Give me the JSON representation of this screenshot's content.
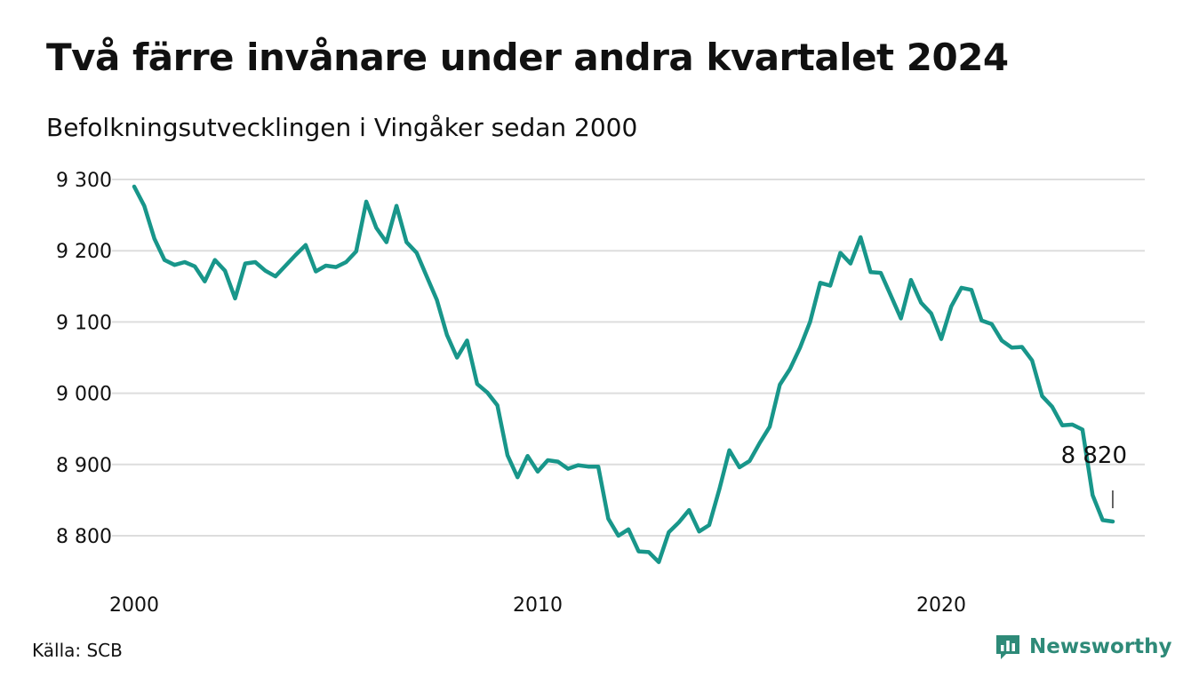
{
  "title": "Två färre invånare under andra kvartalet 2024",
  "subtitle": "Befolkningsutvecklingen i Vingåker sedan 2000",
  "source": "Källa: SCB",
  "brand": {
    "name": "Newsworthy",
    "icon": "newsworthy-logo-icon",
    "color": "#2e8a78"
  },
  "colors": {
    "line": "#18968a",
    "grid": "#dddddd",
    "text": "#111111"
  },
  "chart_data": {
    "type": "line",
    "title": "Två färre invånare under andra kvartalet 2024",
    "subtitle": "Befolkningsutvecklingen i Vingåker sedan 2000",
    "xlabel": "",
    "ylabel": "",
    "x_range": [
      2000,
      2025
    ],
    "ylim": [
      8745,
      9300
    ],
    "y_ticks": [
      8800,
      8900,
      9000,
      9100,
      9200,
      9300
    ],
    "y_tick_labels": [
      "8 800",
      "8 900",
      "9 000",
      "9 100",
      "9 200",
      "9 300"
    ],
    "x_ticks": [
      2000,
      2010,
      2020
    ],
    "x_tick_labels": [
      "2000",
      "2010",
      "2020"
    ],
    "grid": true,
    "end_label": "8 820",
    "series": [
      {
        "frequency": "quarterly",
        "start": "2000 Q1",
        "values": [
          9290,
          9263,
          9217,
          9187,
          9180,
          9184,
          9178,
          9157,
          9187,
          9172,
          9133,
          9182,
          9184,
          9172,
          9164,
          9179,
          9194,
          9208,
          9171,
          9179,
          9177,
          9184,
          9199,
          9269,
          9232,
          9212,
          9263,
          9212,
          9197,
          9164,
          9131,
          9082,
          9050,
          9074,
          9013,
          9001,
          8983,
          8913,
          8882,
          8912,
          8890,
          8906,
          8904,
          8894,
          8899,
          8897,
          8897,
          8824,
          8800,
          8809,
          8778,
          8777,
          8763,
          8805,
          8819,
          8836,
          8806,
          8815,
          8865,
          8920,
          8896,
          8905,
          8930,
          8953,
          9012,
          9034,
          9064,
          9100,
          9155,
          9151,
          9197,
          9182,
          9219,
          9170,
          9169,
          9137,
          9105,
          9159,
          9127,
          9112,
          9076,
          9122,
          9148,
          9145,
          9102,
          9097,
          9074,
          9064,
          9065,
          9046,
          8996,
          8981,
          8955,
          8956,
          8949,
          8857,
          8822,
          8820
        ]
      }
    ]
  }
}
